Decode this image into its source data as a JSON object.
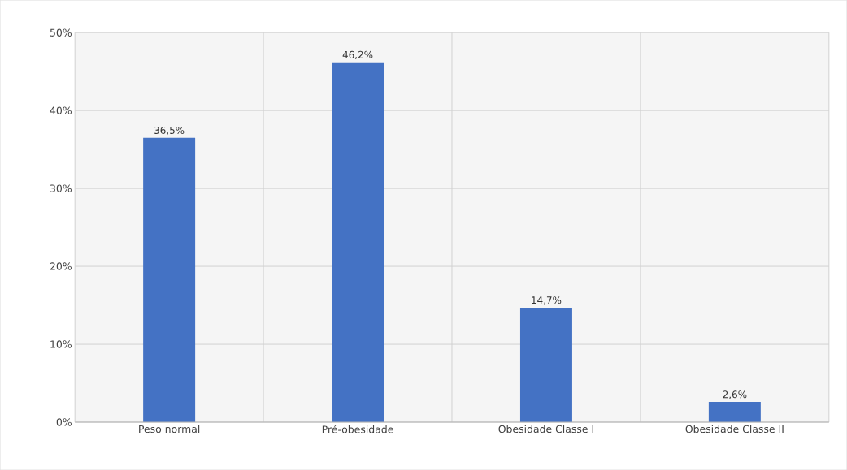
{
  "chart_data": {
    "type": "bar",
    "categories": [
      "Peso normal",
      "Pré-obesidade",
      "Obesidade Classe I",
      "Obesidade Classe II"
    ],
    "values": [
      36.5,
      46.2,
      14.7,
      2.6
    ],
    "value_labels": [
      "36,5%",
      "46,2%",
      "14,7%",
      "2,6%"
    ],
    "color": "#4472c4",
    "ylim": [
      0,
      50
    ],
    "yticks": [
      {
        "value": 0,
        "label": "0%"
      },
      {
        "value": 10,
        "label": "10%"
      },
      {
        "value": 20,
        "label": "20%"
      },
      {
        "value": 30,
        "label": "30%"
      },
      {
        "value": 40,
        "label": "40%"
      },
      {
        "value": 50,
        "label": "50%"
      }
    ],
    "grid": true
  }
}
